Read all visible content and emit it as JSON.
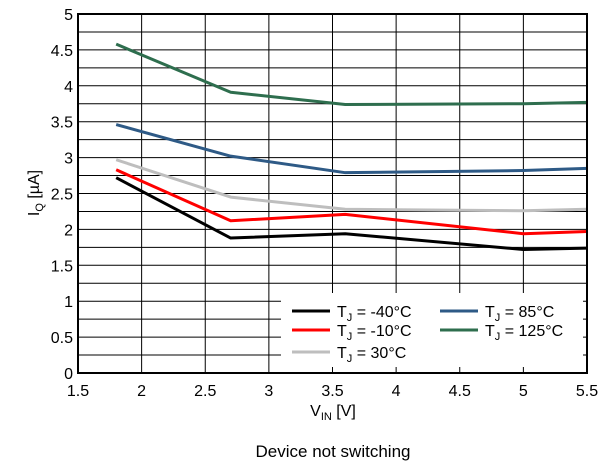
{
  "chart_data": {
    "type": "line",
    "title": "",
    "caption": "Device not switching",
    "xlabel": {
      "main": "V",
      "sub": "IN",
      "unit": " [V]"
    },
    "ylabel": {
      "main": "I",
      "sub": "Q",
      "unit": " [µA]"
    },
    "xlim": [
      1.5,
      5.5
    ],
    "ylim": [
      0,
      5
    ],
    "x_ticks": [
      1.5,
      2,
      2.5,
      3,
      3.5,
      4,
      4.5,
      5,
      5.5
    ],
    "x_tick_labels": [
      "1.5",
      "2",
      "2.5",
      "3",
      "3.5",
      "4",
      "4.5",
      "5",
      "5.5"
    ],
    "y_ticks": [
      0,
      0.5,
      1,
      1.5,
      2,
      2.5,
      3,
      3.5,
      4,
      4.5,
      5
    ],
    "y_tick_labels": [
      "0",
      "0.5",
      "1",
      "1.5",
      "2",
      "2.5",
      "3",
      "3.5",
      "4",
      "4.5",
      "5"
    ],
    "grid": true,
    "minor_grid_y": 0.25,
    "legend_position": "bottom-right",
    "series": [
      {
        "name": "T_J = -40°C",
        "label_main": "T",
        "label_sub": "J",
        "label_rest": " = -40°C",
        "color": "#000000",
        "x": [
          1.8,
          2.7,
          3.6,
          5.0,
          5.5
        ],
        "y": [
          2.72,
          1.88,
          1.94,
          1.72,
          1.74
        ]
      },
      {
        "name": "T_J = -10°C",
        "label_main": "T",
        "label_sub": "J",
        "label_rest": " = -10°C",
        "color": "#ff0000",
        "x": [
          1.8,
          2.7,
          3.6,
          5.0,
          5.5
        ],
        "y": [
          2.83,
          2.12,
          2.21,
          1.94,
          1.97
        ]
      },
      {
        "name": "T_J = 30°C",
        "label_main": "T",
        "label_sub": "J",
        "label_rest": " = 30°C",
        "color": "#bebebe",
        "x": [
          1.8,
          2.7,
          3.6,
          5.0,
          5.5
        ],
        "y": [
          2.97,
          2.45,
          2.28,
          2.26,
          2.28
        ]
      },
      {
        "name": "T_J = 85°C",
        "label_main": "T",
        "label_sub": "J",
        "label_rest": " = 85°C",
        "color": "#2e5a86",
        "x": [
          1.8,
          2.7,
          3.6,
          5.0,
          5.5
        ],
        "y": [
          3.46,
          3.02,
          2.79,
          2.82,
          2.85
        ]
      },
      {
        "name": "T_J = 125°C",
        "label_main": "T",
        "label_sub": "J",
        "label_rest": " = 125°C",
        "color": "#2e6e4e",
        "x": [
          1.8,
          2.7,
          3.6,
          5.0,
          5.5
        ],
        "y": [
          4.58,
          3.91,
          3.74,
          3.75,
          3.77
        ]
      }
    ]
  }
}
